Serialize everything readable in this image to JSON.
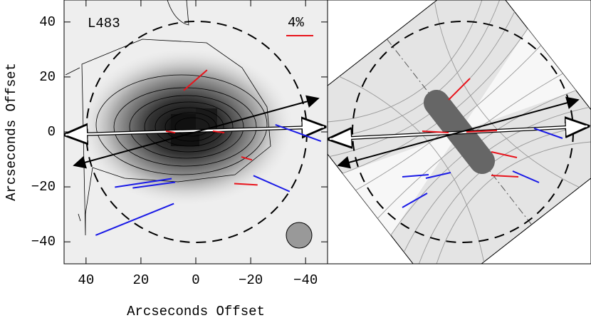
{
  "chart_data": {
    "type": "vector",
    "label": "L483",
    "scale_label": "4%",
    "xlabel": "Arcseconds Offset",
    "ylabel": "Arcseconds Offset",
    "xlim": [
      48,
      -48
    ],
    "ylim": [
      -48,
      48
    ],
    "xticks": [
      40,
      20,
      0,
      {
        "value": -20,
        "label": "−20"
      },
      {
        "value": -40,
        "label": "−40"
      }
    ],
    "yticks": [
      {
        "value": -40,
        "label": "−40"
      },
      {
        "value": -20,
        "label": "−20"
      },
      0,
      20,
      40
    ],
    "series": [
      {
        "color": "#e8141c",
        "x0": [
          4.4,
          10.9,
          -6.2,
          -16.6,
          -14
        ],
        "y0": [
          15.1,
          0.3,
          0.3,
          -9.1,
          -18.8
        ],
        "x1": [
          -4.1,
          7.5,
          -10.4,
          -20.5,
          -22.5
        ],
        "y1": [
          22.5,
          -0.3,
          -0.3,
          -10.2,
          -19.3
        ]
      },
      {
        "color": "#1a1ae6",
        "x0": [
          29.5,
          23,
          36.5,
          -21,
          -29
        ],
        "y0": [
          -20.1,
          -20.4,
          -37.6,
          -15.9,
          2.6
        ],
        "x1": [
          8.8,
          7.5,
          8,
          -34.2,
          -45.6
        ],
        "y1": [
          -17,
          -18.3,
          -26.1,
          -21.7,
          -3.4
        ]
      }
    ]
  }
}
